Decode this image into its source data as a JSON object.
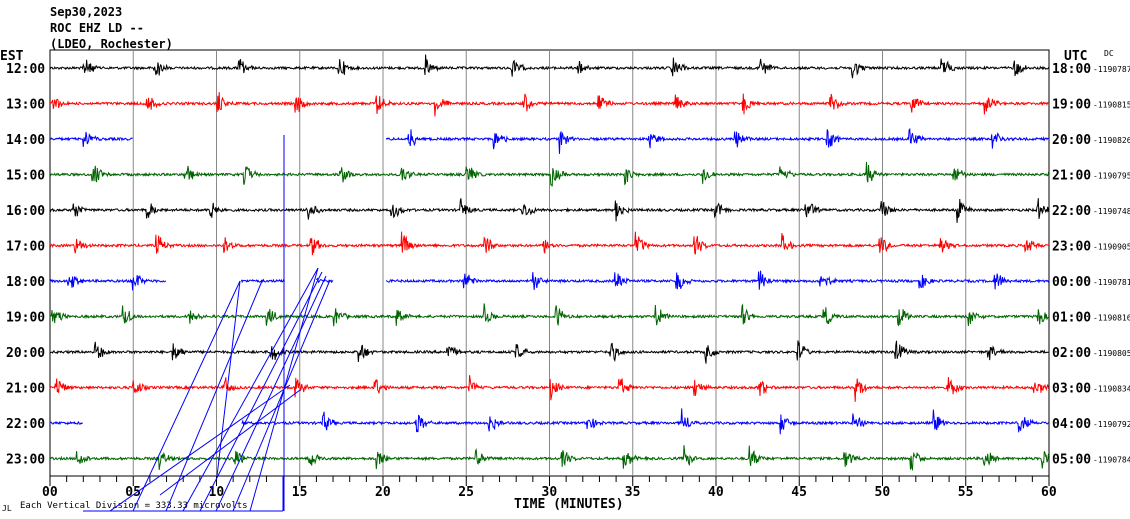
{
  "header": {
    "date": "Sep30,2023",
    "station": "ROC EHZ LD --",
    "network": "(LDEO, Rochester)"
  },
  "chart_data": {
    "type": "line",
    "subtype": "helicorder",
    "left_axis_title": "EST",
    "right_axis_title": "UTC",
    "dc_title": "DC",
    "xlabel": "TIME (MINUTES)",
    "xlim": [
      0,
      60
    ],
    "x_ticks": [
      "00",
      "05",
      "10",
      "15",
      "20",
      "25",
      "30",
      "35",
      "40",
      "45",
      "50",
      "55",
      "60"
    ],
    "scale_note": "Each Vertical Division = 333.33 microvolts",
    "corner_mark": "JL",
    "rows": [
      {
        "est": "12:00",
        "utc": "18:00",
        "dc": "-1190787",
        "color": "#000000",
        "segments": [
          [
            0,
            60
          ]
        ]
      },
      {
        "est": "13:00",
        "utc": "19:00",
        "dc": "-1190815",
        "color": "#ff0000",
        "segments": [
          [
            0,
            60
          ]
        ]
      },
      {
        "est": "14:00",
        "utc": "20:00",
        "dc": "-1190826",
        "color": "#0000ff",
        "segments": [
          [
            0,
            5
          ],
          [
            20.2,
            60
          ]
        ]
      },
      {
        "est": "15:00",
        "utc": "21:00",
        "dc": "-1190795",
        "color": "#006400",
        "segments": [
          [
            0,
            60
          ]
        ]
      },
      {
        "est": "16:00",
        "utc": "22:00",
        "dc": "-1190748",
        "color": "#000000",
        "segments": [
          [
            0,
            60
          ]
        ]
      },
      {
        "est": "17:00",
        "utc": "23:00",
        "dc": "-1190905",
        "color": "#ff0000",
        "segments": [
          [
            0,
            60
          ]
        ]
      },
      {
        "est": "18:00",
        "utc": "00:00",
        "dc": "-1190781",
        "color": "#0000ff",
        "segments": [
          [
            0,
            7
          ],
          [
            11.5,
            14.1
          ],
          [
            16,
            17
          ],
          [
            20.2,
            60
          ]
        ]
      },
      {
        "est": "19:00",
        "utc": "01:00",
        "dc": "-1190816",
        "color": "#006400",
        "segments": [
          [
            0,
            60
          ]
        ]
      },
      {
        "est": "20:00",
        "utc": "02:00",
        "dc": "-1190805",
        "color": "#000000",
        "segments": [
          [
            0,
            60
          ]
        ]
      },
      {
        "est": "21:00",
        "utc": "03:00",
        "dc": "-1190834",
        "color": "#ff0000",
        "segments": [
          [
            0,
            60
          ]
        ]
      },
      {
        "est": "22:00",
        "utc": "04:00",
        "dc": "-1190792",
        "color": "#0000ff",
        "segments": [
          [
            0,
            2
          ],
          [
            11.5,
            60
          ]
        ]
      },
      {
        "est": "23:00",
        "utc": "05:00",
        "dc": "-1190784",
        "color": "#006400",
        "segments": [
          [
            0,
            60
          ]
        ]
      }
    ]
  }
}
